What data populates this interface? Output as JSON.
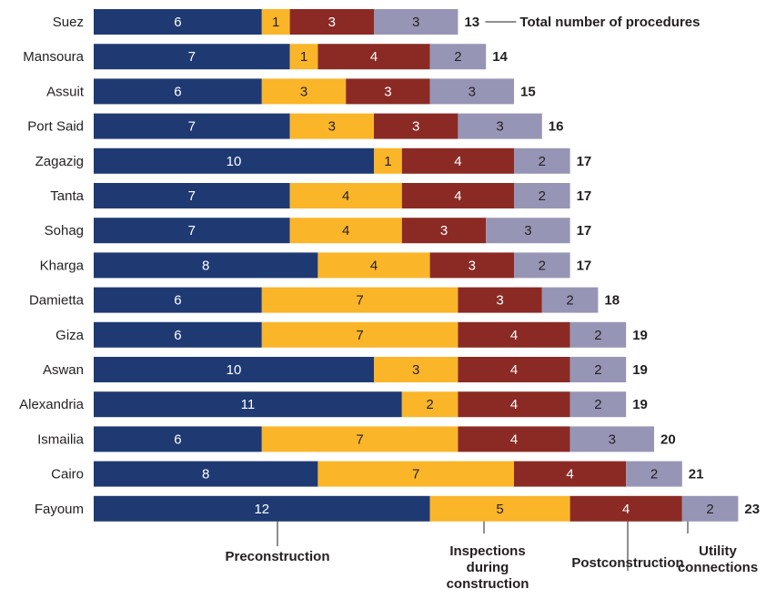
{
  "chart_data": {
    "type": "bar",
    "orientation": "horizontal",
    "stacked": true,
    "categories": [
      "Suez",
      "Mansoura",
      "Assuit",
      "Port Said",
      "Zagazig",
      "Tanta",
      "Sohag",
      "Kharga",
      "Damietta",
      "Giza",
      "Aswan",
      "Alexandria",
      "Ismailia",
      "Cairo",
      "Fayoum"
    ],
    "series": [
      {
        "name": "Preconstruction",
        "color": "#1f3a73",
        "label_color": "#ffffff",
        "values": [
          6,
          7,
          6,
          7,
          10,
          7,
          7,
          8,
          6,
          6,
          10,
          11,
          6,
          8,
          12
        ]
      },
      {
        "name": "Inspections during construction",
        "color": "#fbb529",
        "label_color": "#231f20",
        "values": [
          1,
          1,
          3,
          3,
          1,
          4,
          4,
          4,
          7,
          7,
          3,
          2,
          7,
          7,
          5
        ]
      },
      {
        "name": "Postconstruction",
        "color": "#8b2a24",
        "label_color": "#ffffff",
        "values": [
          3,
          4,
          3,
          3,
          4,
          4,
          3,
          3,
          3,
          4,
          4,
          4,
          4,
          4,
          4
        ]
      },
      {
        "name": "Utility connections",
        "color": "#9795b5",
        "label_color": "#231f20",
        "values": [
          3,
          2,
          3,
          3,
          2,
          2,
          3,
          2,
          2,
          2,
          2,
          2,
          3,
          2,
          2
        ]
      }
    ],
    "totals": [
      13,
      14,
      15,
      16,
      17,
      17,
      17,
      17,
      18,
      19,
      19,
      19,
      20,
      21,
      23
    ],
    "total_label": "Total number of procedures",
    "annotations": {
      "preconstruction": [
        "Preconstruction"
      ],
      "inspections": [
        "Inspections",
        "during",
        "construction"
      ],
      "postconstruction": [
        "Postconstruction"
      ],
      "utility": [
        "Utility",
        "connections"
      ]
    },
    "xlim": [
      0,
      23
    ],
    "grid": false,
    "legend": "none"
  }
}
